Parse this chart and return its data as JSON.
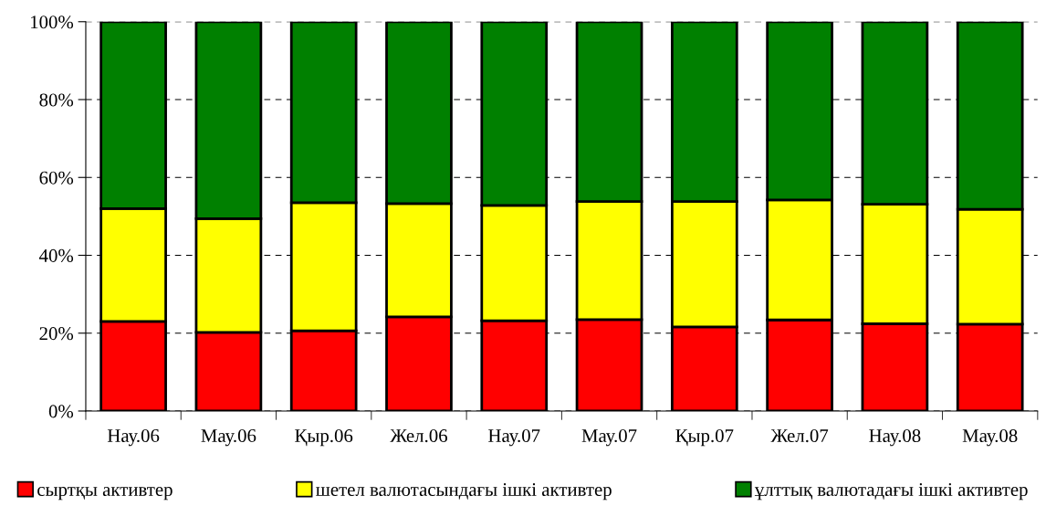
{
  "chart_data": {
    "type": "bar",
    "stacked": true,
    "categories": [
      "Нау.06",
      "Мау.06",
      "Қыр.06",
      "Жел.06",
      "Нау.07",
      "Мау.07",
      "Қыр.07",
      "Жел.07",
      "Нау.08",
      "Мау.08"
    ],
    "series": [
      {
        "name": "сыртқы активтер",
        "color": "#ff0000",
        "values": [
          23.0,
          20.2,
          20.6,
          24.2,
          23.2,
          23.5,
          21.6,
          23.4,
          22.4,
          22.3
        ]
      },
      {
        "name": "шетел валютасындағы ішкі активтер",
        "color": "#ffff00",
        "values": [
          29.0,
          29.2,
          32.9,
          29.1,
          29.6,
          30.3,
          32.2,
          30.8,
          30.7,
          29.5
        ]
      },
      {
        "name": "ұлттық валютадағы ішкі активтер",
        "color": "#008000",
        "values": [
          48.0,
          50.6,
          46.5,
          46.7,
          47.2,
          46.2,
          46.2,
          45.8,
          46.9,
          48.2
        ]
      }
    ],
    "ylim": [
      0,
      100
    ],
    "yticks": [
      {
        "value": 0,
        "label": "0%"
      },
      {
        "value": 20,
        "label": "20%"
      },
      {
        "value": 40,
        "label": "40%"
      },
      {
        "value": 60,
        "label": "60%"
      },
      {
        "value": 80,
        "label": "80%"
      },
      {
        "value": 100,
        "label": "100%"
      }
    ],
    "grid": "y",
    "legend": "bottom"
  }
}
